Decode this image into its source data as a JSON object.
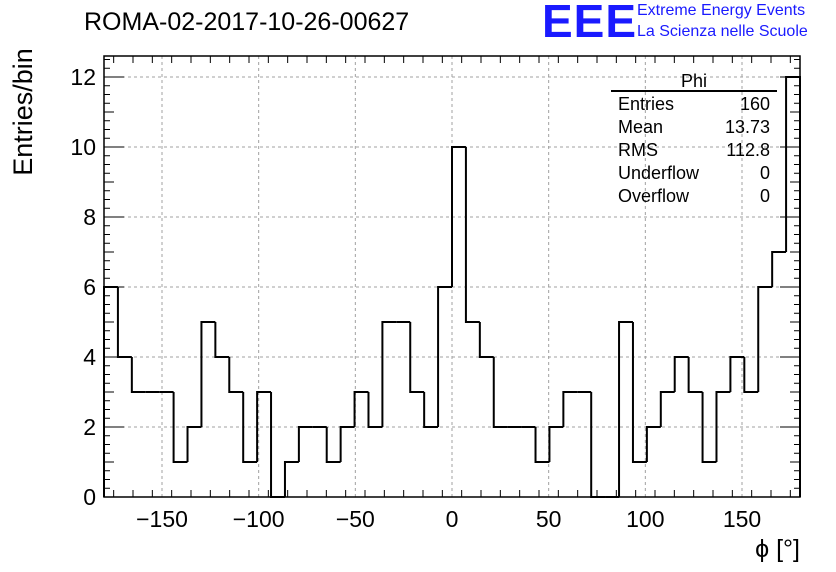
{
  "header": {
    "run_title": "ROMA-02-2017-10-26-00627",
    "logo_text": "EEE",
    "logo_line1": "Extreme Energy Events",
    "logo_line2": "La Scienza nelle Scuole",
    "logo_color": "#1a1aff"
  },
  "stats_box": {
    "title": "Phi",
    "rows": [
      {
        "label": "Entries",
        "value": "160"
      },
      {
        "label": "Mean",
        "value": "13.73"
      },
      {
        "label": "RMS",
        "value": "112.8"
      },
      {
        "label": "Underflow",
        "value": "0"
      },
      {
        "label": "Overflow",
        "value": "0"
      }
    ]
  },
  "chart_data": {
    "type": "bar",
    "style": "step-histogram",
    "title": "ROMA-02-2017-10-26-00627",
    "xlabel": "ϕ [°]",
    "ylabel": "Entries/bin",
    "xlim": [
      -180,
      180
    ],
    "ylim": [
      0,
      12.6
    ],
    "bin_width": 7.2,
    "x_ticks": [
      -150,
      -100,
      -50,
      0,
      50,
      100,
      150
    ],
    "x_tick_labels": [
      "−150",
      "−100",
      "−50",
      "0",
      "50",
      "100",
      "150"
    ],
    "y_ticks": [
      0,
      2,
      4,
      6,
      8,
      10,
      12
    ],
    "grid": true,
    "line_color": "#000000",
    "values": [
      6,
      4,
      3,
      3,
      3,
      1,
      2,
      5,
      4,
      3,
      1,
      3,
      0,
      1,
      2,
      2,
      1,
      2,
      3,
      2,
      5,
      5,
      3,
      2,
      6,
      10,
      5,
      4,
      2,
      2,
      2,
      1,
      2,
      3,
      3,
      0,
      0,
      5,
      1,
      2,
      3,
      4,
      3,
      1,
      3,
      4,
      3,
      6,
      7,
      12
    ]
  }
}
